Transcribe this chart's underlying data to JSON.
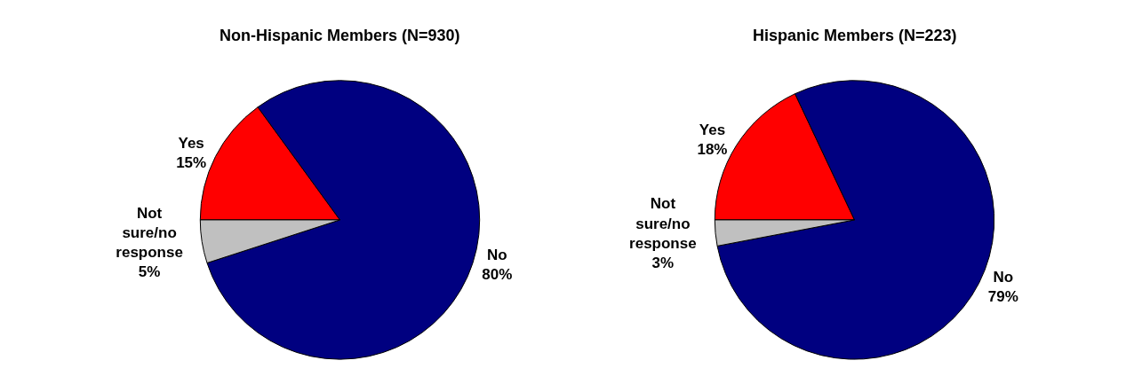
{
  "chart_data": [
    {
      "type": "pie",
      "title": "Non-Hispanic Members (N=930)",
      "categories": [
        "Yes",
        "No",
        "Not sure/no response"
      ],
      "values": [
        15,
        80,
        5
      ],
      "value_labels": [
        "15%",
        "80%",
        "5%"
      ],
      "colors": [
        "#ff0000",
        "#000080",
        "#c0c0c0"
      ],
      "legend": false
    },
    {
      "type": "pie",
      "title": "Hispanic Members (N=223)",
      "categories": [
        "Yes",
        "No",
        "Not sure/no response"
      ],
      "values": [
        18,
        79,
        3
      ],
      "value_labels": [
        "18%",
        "79%",
        "3%"
      ],
      "colors": [
        "#ff0000",
        "#000080",
        "#c0c0c0"
      ],
      "legend": false
    }
  ]
}
